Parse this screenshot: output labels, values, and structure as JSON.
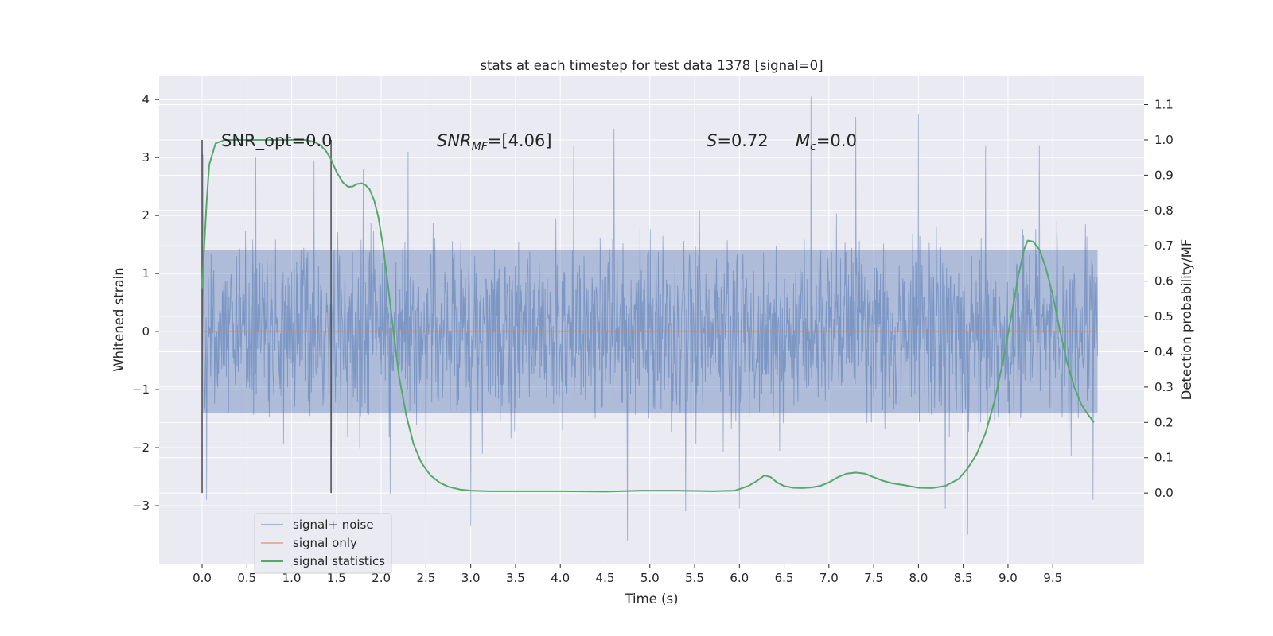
{
  "chart_data": {
    "type": "line",
    "title": "stats at each timestep for test data 1378 [signal=0]",
    "xlabel": "Time (s)",
    "ylabel": "Whitened strain",
    "ylabel_right": "Detection probability/MF",
    "xlim": [
      -0.48,
      10.52
    ],
    "ylim": [
      -4.0,
      4.4
    ],
    "ylim_right": [
      -0.2,
      1.18
    ],
    "x_ticks": [
      "0.0",
      "0.5",
      "1.0",
      "1.5",
      "2.0",
      "2.5",
      "3.0",
      "3.5",
      "4.0",
      "4.5",
      "5.0",
      "5.5",
      "6.0",
      "6.5",
      "7.0",
      "7.5",
      "8.0",
      "8.5",
      "9.0",
      "9.5"
    ],
    "y_ticks": [
      "4",
      "3",
      "2",
      "1",
      "0",
      "−1",
      "−2",
      "−3"
    ],
    "y_ticks_right": [
      "1.1",
      "1.0",
      "0.9",
      "0.8",
      "0.7",
      "0.6",
      "0.5",
      "0.4",
      "0.3",
      "0.2",
      "0.1",
      "0.0"
    ],
    "grid": true,
    "legend_position": "bottom-left",
    "annotations": {
      "snr_opt": "SNR_opt=0.0",
      "snr_mf_italic": "SNR",
      "snr_mf_sub": "MF",
      "snr_mf_value": "=[4.06]",
      "s_italic": "S",
      "s_value": "=0.72",
      "mc_italic": "M",
      "mc_sub": "c",
      "mc_value": "=0.0"
    },
    "vertical_markers_x": [
      0.0,
      1.44
    ],
    "series": [
      {
        "name": "signal+ noise",
        "color": "#4c72b0",
        "axis": "left",
        "style": "dense noise, |x| mostly within ±2.2, peaks to 4.05 near t=6.8",
        "envelope_core": [
          -1.4,
          1.4
        ],
        "peaks": [
          {
            "x": 0.01,
            "y": 3.05
          },
          {
            "x": 0.05,
            "y": -2.9
          },
          {
            "x": 0.6,
            "y": 3.0
          },
          {
            "x": 1.25,
            "y": 2.95
          },
          {
            "x": 1.8,
            "y": 2.8
          },
          {
            "x": 2.1,
            "y": -2.8
          },
          {
            "x": 2.3,
            "y": 3.1
          },
          {
            "x": 2.5,
            "y": -3.15
          },
          {
            "x": 3.0,
            "y": -3.35
          },
          {
            "x": 4.15,
            "y": 3.2
          },
          {
            "x": 4.6,
            "y": 3.5
          },
          {
            "x": 4.75,
            "y": -3.6
          },
          {
            "x": 5.4,
            "y": -3.1
          },
          {
            "x": 6.0,
            "y": -3.05
          },
          {
            "x": 6.8,
            "y": 4.05
          },
          {
            "x": 7.3,
            "y": 3.7
          },
          {
            "x": 8.0,
            "y": 3.75
          },
          {
            "x": 8.3,
            "y": -3.05
          },
          {
            "x": 8.55,
            "y": -3.5
          },
          {
            "x": 8.75,
            "y": 3.2
          },
          {
            "x": 9.35,
            "y": 3.2
          },
          {
            "x": 9.95,
            "y": -2.9
          }
        ]
      },
      {
        "name": "signal only",
        "color": "#dd8452",
        "axis": "left",
        "x": [
          0.0,
          10.0
        ],
        "y": [
          0.0,
          0.0
        ]
      },
      {
        "name": "signal statistics",
        "color": "#55a868",
        "axis": "right",
        "x": [
          0.0,
          0.05,
          0.08,
          0.15,
          0.25,
          0.4,
          0.6,
          0.8,
          1.0,
          1.15,
          1.25,
          1.32,
          1.38,
          1.44,
          1.5,
          1.57,
          1.63,
          1.68,
          1.73,
          1.78,
          1.82,
          1.87,
          1.92,
          1.97,
          2.02,
          2.08,
          2.14,
          2.2,
          2.28,
          2.36,
          2.45,
          2.55,
          2.65,
          2.75,
          2.88,
          3.0,
          3.2,
          3.5,
          4.0,
          4.5,
          4.9,
          5.3,
          5.7,
          5.95,
          6.1,
          6.2,
          6.28,
          6.35,
          6.42,
          6.5,
          6.6,
          6.7,
          6.8,
          6.9,
          7.0,
          7.1,
          7.2,
          7.3,
          7.4,
          7.5,
          7.6,
          7.7,
          7.85,
          8.0,
          8.15,
          8.3,
          8.45,
          8.55,
          8.65,
          8.75,
          8.85,
          8.95,
          9.05,
          9.12,
          9.18,
          9.22,
          9.28,
          9.35,
          9.42,
          9.5,
          9.58,
          9.66,
          9.74,
          9.82,
          9.9,
          9.96
        ],
        "y": [
          0.58,
          0.82,
          0.93,
          0.99,
          1.0,
          1.0,
          1.0,
          1.0,
          1.0,
          1.0,
          0.995,
          0.985,
          0.97,
          0.945,
          0.91,
          0.88,
          0.867,
          0.868,
          0.875,
          0.877,
          0.873,
          0.86,
          0.83,
          0.78,
          0.7,
          0.58,
          0.45,
          0.33,
          0.22,
          0.14,
          0.085,
          0.05,
          0.03,
          0.018,
          0.01,
          0.007,
          0.005,
          0.005,
          0.005,
          0.004,
          0.007,
          0.007,
          0.005,
          0.007,
          0.02,
          0.035,
          0.05,
          0.045,
          0.03,
          0.02,
          0.015,
          0.014,
          0.016,
          0.02,
          0.03,
          0.045,
          0.055,
          0.058,
          0.055,
          0.045,
          0.035,
          0.028,
          0.022,
          0.015,
          0.014,
          0.02,
          0.04,
          0.07,
          0.11,
          0.17,
          0.26,
          0.38,
          0.52,
          0.62,
          0.69,
          0.715,
          0.712,
          0.69,
          0.64,
          0.56,
          0.46,
          0.37,
          0.3,
          0.25,
          0.22,
          0.2
        ]
      }
    ]
  }
}
